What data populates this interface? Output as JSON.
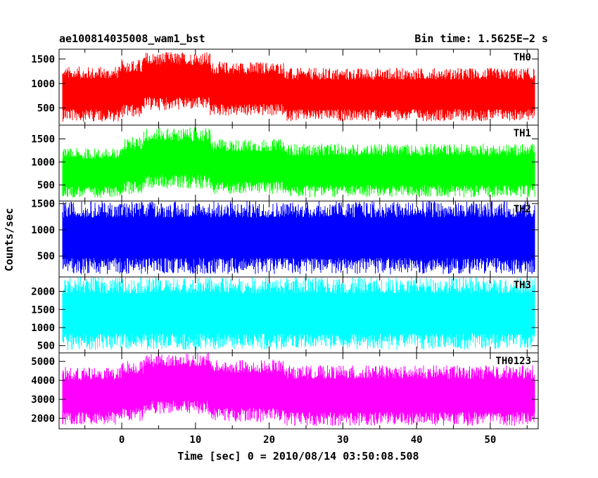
{
  "header": {
    "left_title": "ae100814035008_wam1_bst",
    "right_title": "Bin time: 1.5625E−2 s"
  },
  "chart_data": {
    "type": "line",
    "title": "ae100814035008_wam1_bst",
    "subtitle": "Bin time: 1.5625E−2 s",
    "xlabel": "Time [sec] 0 = 2010/08/14 03:50:08.508",
    "ylabel": "Counts/sec",
    "xlim": [
      -8.5,
      56.5
    ],
    "xticks": [
      0,
      10,
      20,
      30,
      40,
      50
    ],
    "x_data_range": [
      -8,
      56
    ],
    "grid": false,
    "panels": [
      {
        "name": "TH0",
        "color": "#ff0000",
        "ylim": [
          150,
          1700
        ],
        "yticks": [
          500,
          1000,
          1500
        ],
        "segments": [
          {
            "x_start": -8,
            "x_end": 0,
            "low": 220,
            "high": 1350
          },
          {
            "x_start": 0,
            "x_end": 3,
            "low": 300,
            "high": 1500
          },
          {
            "x_start": 3,
            "x_end": 12,
            "low": 450,
            "high": 1650
          },
          {
            "x_start": 12,
            "x_end": 22,
            "low": 330,
            "high": 1450
          },
          {
            "x_start": 22,
            "x_end": 56,
            "low": 230,
            "high": 1320
          }
        ]
      },
      {
        "name": "TH1",
        "color": "#00ff00",
        "ylim": [
          150,
          1800
        ],
        "yticks": [
          500,
          1000,
          1500
        ],
        "segments": [
          {
            "x_start": -8,
            "x_end": 0,
            "low": 220,
            "high": 1300
          },
          {
            "x_start": 0,
            "x_end": 3,
            "low": 300,
            "high": 1550
          },
          {
            "x_start": 3,
            "x_end": 12,
            "low": 420,
            "high": 1750
          },
          {
            "x_start": 12,
            "x_end": 22,
            "low": 300,
            "high": 1500
          },
          {
            "x_start": 22,
            "x_end": 56,
            "low": 230,
            "high": 1400
          }
        ]
      },
      {
        "name": "TH2",
        "color": "#0000ff",
        "ylim": [
          100,
          1550
        ],
        "yticks": [
          500,
          1000,
          1500
        ],
        "segments": [
          {
            "x_start": -8,
            "x_end": 56,
            "low": 150,
            "high": 1550
          }
        ]
      },
      {
        "name": "TH3",
        "color": "#00ffff",
        "ylim": [
          300,
          2400
        ],
        "yticks": [
          500,
          1000,
          1500,
          2000
        ],
        "segments": [
          {
            "x_start": -8,
            "x_end": 56,
            "low": 380,
            "high": 2400
          }
        ]
      },
      {
        "name": "TH0123",
        "color": "#ff00ff",
        "ylim": [
          1450,
          5450
        ],
        "yticks": [
          2000,
          3000,
          4000,
          5000
        ],
        "segments": [
          {
            "x_start": -8,
            "x_end": 0,
            "low": 1650,
            "high": 4700
          },
          {
            "x_start": 0,
            "x_end": 3,
            "low": 1800,
            "high": 5100
          },
          {
            "x_start": 3,
            "x_end": 12,
            "low": 2200,
            "high": 5450
          },
          {
            "x_start": 12,
            "x_end": 22,
            "low": 1800,
            "high": 5100
          },
          {
            "x_start": 22,
            "x_end": 56,
            "low": 1600,
            "high": 4800
          }
        ]
      }
    ]
  }
}
